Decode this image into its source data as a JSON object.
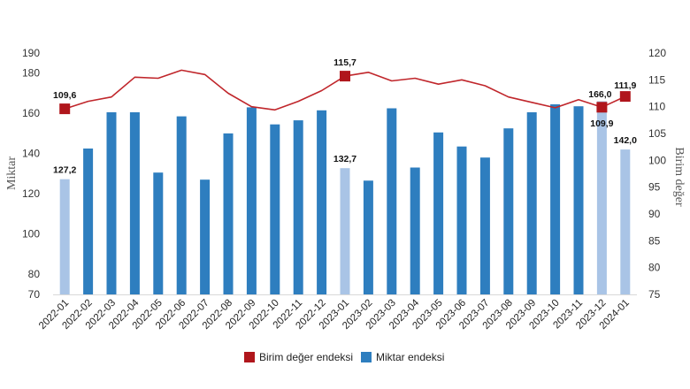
{
  "chart_data": {
    "type": "bar",
    "categories": [
      "2022-01",
      "2022-02",
      "2022-03",
      "2022-04",
      "2022-05",
      "2022-06",
      "2022-07",
      "2022-08",
      "2022-09",
      "2022-10",
      "2022-11",
      "2022-12",
      "2023-01",
      "2023-02",
      "2023-03",
      "2023-04",
      "2023-05",
      "2023-06",
      "2023-07",
      "2023-08",
      "2023-09",
      "2023-10",
      "2023-11",
      "2023-12",
      "2024-01"
    ],
    "series": [
      {
        "name": "Miktar endeksi",
        "type": "bar",
        "axis": "left",
        "color": "#2e7ebf",
        "highlight_color": "#a9c4e6",
        "highlighted": [
          "2022-01",
          "2023-01",
          "2023-12",
          "2024-01"
        ],
        "values": [
          127.2,
          142.5,
          160.5,
          160.5,
          130.5,
          158.5,
          127.0,
          150.0,
          163.0,
          154.5,
          156.5,
          161.5,
          132.7,
          126.5,
          162.5,
          133.0,
          150.5,
          143.5,
          138.0,
          152.5,
          160.5,
          164.5,
          163.5,
          166.0,
          142.0
        ]
      },
      {
        "name": "Birim değer endeksi",
        "type": "line",
        "axis": "right",
        "color": "#c0262b",
        "values": [
          109.6,
          111.0,
          111.8,
          115.5,
          115.3,
          116.8,
          116.0,
          112.5,
          110.0,
          109.4,
          111.0,
          113.0,
          115.7,
          116.4,
          114.8,
          115.3,
          114.2,
          115.0,
          113.9,
          111.8,
          110.8,
          109.8,
          111.3,
          109.9,
          111.9
        ]
      }
    ],
    "labels": [
      {
        "series": "Miktar endeksi",
        "category": "2022-01",
        "text": "127,2"
      },
      {
        "series": "Miktar endeksi",
        "category": "2023-01",
        "text": "132,7"
      },
      {
        "series": "Miktar endeksi",
        "category": "2023-12",
        "text": "166,0"
      },
      {
        "series": "Miktar endeksi",
        "category": "2024-01",
        "text": "142,0"
      },
      {
        "series": "Birim değer endeksi",
        "category": "2022-01",
        "text": "109,6"
      },
      {
        "series": "Birim değer endeksi",
        "category": "2023-01",
        "text": "115,7"
      },
      {
        "series": "Birim değer endeksi",
        "category": "2023-12",
        "text": "109,9"
      },
      {
        "series": "Birim değer endeksi",
        "category": "2024-01",
        "text": "111,9"
      }
    ],
    "markers": [
      "2022-01",
      "2023-01",
      "2023-12",
      "2024-01"
    ],
    "ylabel": "Miktar",
    "y2label": "Birim değer",
    "ylim": [
      70,
      190
    ],
    "yticks": [
      70,
      80,
      100,
      120,
      140,
      160,
      180,
      190
    ],
    "y2lim": [
      75,
      120
    ],
    "y2ticks": [
      75,
      80,
      85,
      90,
      95,
      100,
      105,
      110,
      115,
      120
    ],
    "grid": false,
    "legend": {
      "position": "bottom",
      "items": [
        {
          "label": "Birim değer endeksi",
          "color": "#b0161c"
        },
        {
          "label": "Miktar endeksi",
          "color": "#2e7ebf"
        }
      ]
    }
  }
}
